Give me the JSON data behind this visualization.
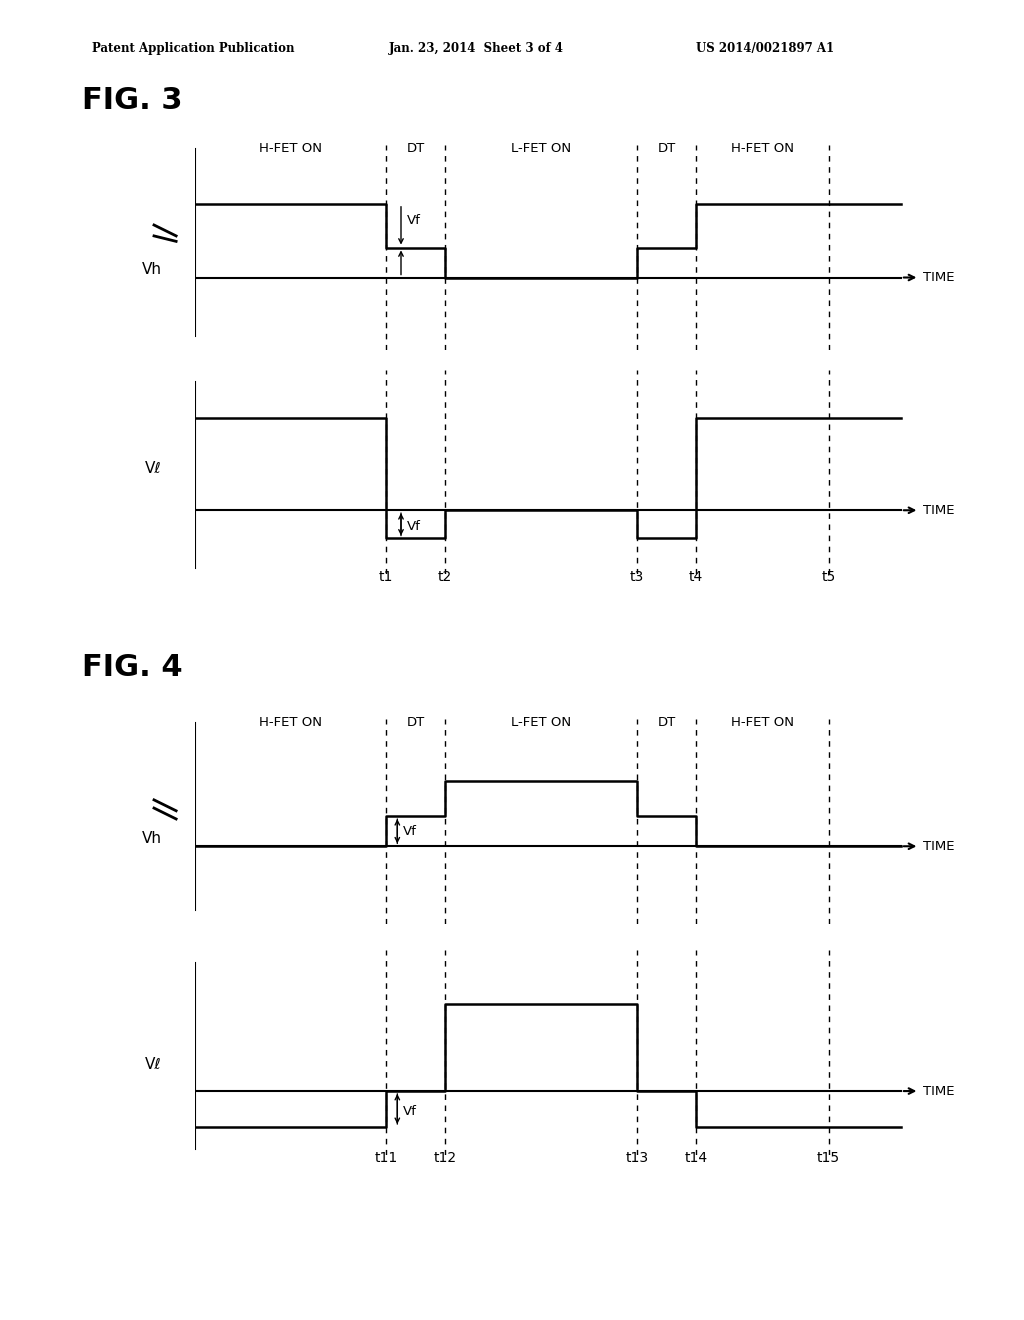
{
  "fig_title1": "FIG. 3",
  "fig_title2": "FIG. 4",
  "header_left": "Patent Application Publication",
  "header_mid": "Jan. 23, 2014  Sheet 3 of 4",
  "header_right": "US 2014/0021897 A1",
  "region_labels": [
    "H-FET ON",
    "DT",
    "L-FET ON",
    "DT",
    "H-FET ON"
  ],
  "time_labels_fig3": [
    "t1",
    "t2",
    "t3",
    "t4",
    "t5"
  ],
  "time_labels_fig4": [
    "t11",
    "t12",
    "t13",
    "t14",
    "t15"
  ],
  "vh_label": "Vh",
  "vl_label": "Vℓ",
  "time_label": "TIME",
  "vf_label": "Vf",
  "bg_color": "#ffffff",
  "line_color": "#000000",
  "t1": 0.26,
  "t2": 0.34,
  "t3": 0.6,
  "t4": 0.68,
  "t5": 0.86,
  "xmax": 1.0
}
